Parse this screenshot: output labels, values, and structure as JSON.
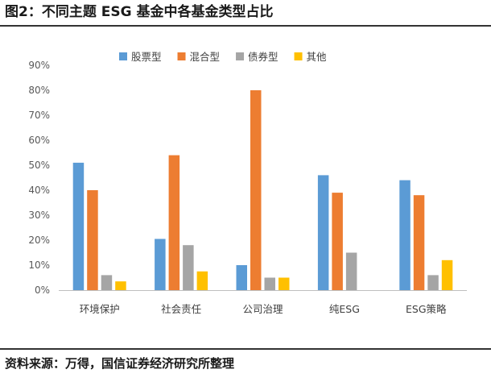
{
  "figure": {
    "title": "图2：不同主题 ESG 基金中各基金类型占比",
    "source": "资料来源：万得，国信证券经济研究所整理"
  },
  "chart_data": {
    "type": "bar",
    "categories": [
      "环境保护",
      "社会责任",
      "公司治理",
      "纯ESG",
      "ESG策略"
    ],
    "series": [
      {
        "name": "股票型",
        "color": "#5B9BD5",
        "values": [
          51,
          20.5,
          10,
          46,
          44
        ]
      },
      {
        "name": "混合型",
        "color": "#ED7D31",
        "values": [
          40,
          54,
          80,
          39,
          38
        ]
      },
      {
        "name": "债券型",
        "color": "#A5A5A5",
        "values": [
          6,
          18,
          5,
          15,
          6
        ]
      },
      {
        "name": "其他",
        "color": "#FFC000",
        "values": [
          3.5,
          7.5,
          5,
          0,
          12
        ]
      }
    ],
    "yticks": [
      "0%",
      "10%",
      "20%",
      "30%",
      "40%",
      "50%",
      "60%",
      "70%",
      "80%",
      "90%"
    ],
    "ylim": [
      0,
      90
    ],
    "grid": false,
    "legend": "top-center"
  }
}
